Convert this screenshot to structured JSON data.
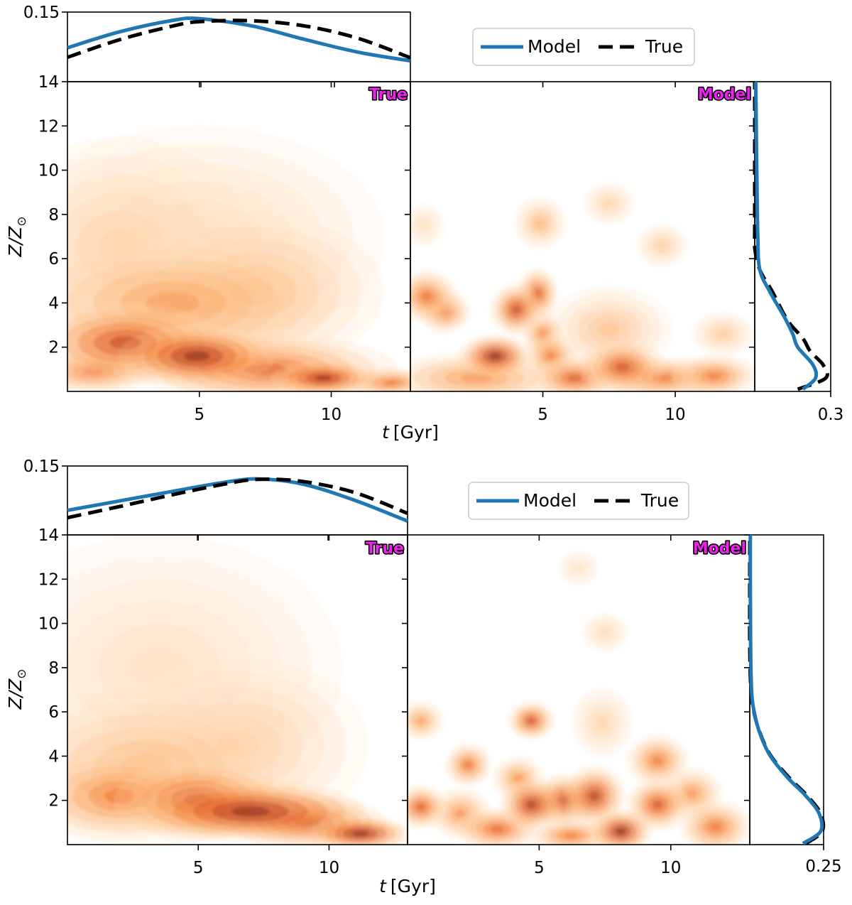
{
  "chart_data": [
    {
      "type": "heatmap",
      "panel": "top",
      "xlabel_t": "t",
      "xlabel_unit": "[Gyr]",
      "ylabel_var": "Z/Z",
      "ylabel_sub": "⊙",
      "xlim": [
        0,
        13
      ],
      "ylim": [
        0,
        14
      ],
      "x_ticks": [
        5,
        10
      ],
      "x_tick_labels": [
        "5",
        "10"
      ],
      "y_ticks": [
        2,
        4,
        6,
        8,
        10,
        12,
        14
      ],
      "y_tick_labels": [
        "2",
        "4",
        "6",
        "8",
        "10",
        "12",
        "14"
      ],
      "top_marginal": {
        "ytick_label": "0.15",
        "series": [
          {
            "name": "Model",
            "x": [
              0,
              2,
              4,
              5,
              7,
              9,
              11,
              13
            ],
            "y": [
              0.078,
              0.115,
              0.141,
              0.145,
              0.128,
              0.097,
              0.068,
              0.048
            ]
          },
          {
            "name": "True",
            "x": [
              0,
              2,
              4,
              5,
              7,
              9,
              11,
              13
            ],
            "y": [
              0.056,
              0.097,
              0.128,
              0.138,
              0.14,
              0.128,
              0.1,
              0.055
            ]
          }
        ]
      },
      "right_marginal": {
        "xtick_label": "0.3",
        "xlim": [
          0,
          0.3
        ],
        "series": [
          {
            "name": "Model",
            "z": [
              0.1,
              0.6,
              1.2,
              2.0,
              2.6,
              3.3,
              4.5,
              5.5,
              7.0,
              10.0,
              13.0,
              14.0
            ],
            "v": [
              0.19,
              0.24,
              0.23,
              0.17,
              0.15,
              0.12,
              0.06,
              0.02,
              0.012,
              0.008,
              0.005,
              0.004
            ]
          },
          {
            "name": "True",
            "z": [
              0.1,
              0.6,
              1.2,
              1.8,
              2.4,
              3.2,
              4.5,
              5.5,
              6.5,
              7.5,
              14.0
            ],
            "v": [
              0.17,
              0.28,
              0.27,
              0.22,
              0.19,
              0.13,
              0.07,
              0.02,
              0.0,
              0.0,
              0.0
            ]
          }
        ]
      },
      "true_blobs": [
        {
          "t": 4.9,
          "z": 1.6,
          "sx": 1.5,
          "sz": 0.7,
          "w": 1.0
        },
        {
          "t": 2.2,
          "z": 2.2,
          "sx": 1.8,
          "sz": 0.9,
          "w": 0.8
        },
        {
          "t": 9.7,
          "z": 0.6,
          "sx": 1.0,
          "sz": 0.4,
          "w": 0.95
        },
        {
          "t": 7.5,
          "z": 1.0,
          "sx": 2.5,
          "sz": 0.8,
          "w": 0.65
        },
        {
          "t": 1.0,
          "z": 0.9,
          "sx": 1.2,
          "sz": 0.5,
          "w": 0.6
        },
        {
          "t": 12.2,
          "z": 0.4,
          "sx": 0.9,
          "sz": 0.35,
          "w": 0.6
        },
        {
          "t": 4.0,
          "z": 4.0,
          "sx": 3.0,
          "sz": 1.5,
          "w": 0.4
        },
        {
          "t": 7.0,
          "z": 4.5,
          "sx": 2.5,
          "sz": 1.8,
          "w": 0.3
        },
        {
          "t": 2.0,
          "z": 6.5,
          "sx": 2.5,
          "sz": 2.5,
          "w": 0.15
        },
        {
          "t": 5.0,
          "z": 7.0,
          "sx": 3.5,
          "sz": 2.5,
          "w": 0.1
        }
      ],
      "model_blobs": [
        {
          "t": 3.2,
          "z": 1.6,
          "sx": 0.7,
          "sz": 0.5,
          "w": 1.0
        },
        {
          "t": 4.0,
          "z": 3.7,
          "sx": 0.5,
          "sz": 0.6,
          "w": 0.8
        },
        {
          "t": 4.8,
          "z": 4.4,
          "sx": 0.4,
          "sz": 0.6,
          "w": 0.7
        },
        {
          "t": 0.6,
          "z": 4.3,
          "sx": 0.6,
          "sz": 0.6,
          "w": 0.6
        },
        {
          "t": 1.3,
          "z": 3.6,
          "sx": 0.5,
          "sz": 0.5,
          "w": 0.55
        },
        {
          "t": 5.0,
          "z": 2.6,
          "sx": 0.4,
          "sz": 0.5,
          "w": 0.5
        },
        {
          "t": 5.3,
          "z": 1.6,
          "sx": 0.5,
          "sz": 0.5,
          "w": 0.55
        },
        {
          "t": 6.2,
          "z": 0.6,
          "sx": 0.8,
          "sz": 0.5,
          "w": 0.7
        },
        {
          "t": 8.0,
          "z": 1.1,
          "sx": 0.8,
          "sz": 0.6,
          "w": 0.75
        },
        {
          "t": 9.5,
          "z": 0.6,
          "sx": 1.2,
          "sz": 0.5,
          "w": 0.55
        },
        {
          "t": 11.5,
          "z": 0.7,
          "sx": 0.8,
          "sz": 0.5,
          "w": 0.55
        },
        {
          "t": 2.5,
          "z": 0.6,
          "sx": 1.8,
          "sz": 0.6,
          "w": 0.45
        },
        {
          "t": 4.9,
          "z": 7.6,
          "sx": 0.5,
          "sz": 0.6,
          "w": 0.3
        },
        {
          "t": 7.5,
          "z": 8.5,
          "sx": 0.5,
          "sz": 0.5,
          "w": 0.15
        },
        {
          "t": 9.5,
          "z": 6.6,
          "sx": 0.5,
          "sz": 0.5,
          "w": 0.18
        },
        {
          "t": 11.8,
          "z": 2.6,
          "sx": 0.6,
          "sz": 0.5,
          "w": 0.2
        },
        {
          "t": 7.5,
          "z": 2.8,
          "sx": 1.2,
          "sz": 1.0,
          "w": 0.25
        },
        {
          "t": 0.5,
          "z": 7.5,
          "sx": 0.4,
          "sz": 0.5,
          "w": 0.08
        }
      ]
    },
    {
      "type": "heatmap",
      "panel": "bottom",
      "xlabel_t": "t",
      "xlabel_unit": "[Gyr]",
      "ylabel_var": "Z/Z",
      "ylabel_sub": "⊙",
      "xlim": [
        0,
        13
      ],
      "ylim": [
        0,
        14
      ],
      "x_ticks": [
        5,
        10
      ],
      "x_tick_labels": [
        "5",
        "10"
      ],
      "y_ticks": [
        2,
        4,
        6,
        8,
        10,
        12,
        14
      ],
      "y_tick_labels": [
        "2",
        "4",
        "6",
        "8",
        "10",
        "12",
        "14"
      ],
      "top_marginal": {
        "ytick_label": "0.15",
        "series": [
          {
            "name": "Model",
            "x": [
              0,
              2,
              4,
              6,
              7.3,
              9,
              11,
              13
            ],
            "y": [
              0.057,
              0.079,
              0.101,
              0.122,
              0.13,
              0.118,
              0.08,
              0.032
            ]
          },
          {
            "name": "True",
            "x": [
              0,
              2,
              4,
              6,
              7.3,
              9,
              11,
              13
            ],
            "y": [
              0.04,
              0.066,
              0.093,
              0.118,
              0.129,
              0.124,
              0.098,
              0.05
            ]
          }
        ]
      },
      "right_marginal": {
        "xtick_label": "0.25",
        "xlim": [
          0,
          0.25
        ],
        "series": [
          {
            "name": "Model",
            "z": [
              0.05,
              0.6,
              1.4,
              2.2,
              3.0,
              4.0,
              5.0,
              6.0,
              7.0,
              9.0,
              12.0,
              14.0
            ],
            "v": [
              0.18,
              0.24,
              0.235,
              0.19,
              0.13,
              0.07,
              0.035,
              0.015,
              0.006,
              0.003,
              0.002,
              0.002
            ]
          },
          {
            "name": "True",
            "z": [
              0.05,
              0.6,
              1.4,
              2.2,
              3.0,
              4.0,
              5.0,
              6.0,
              7.0,
              9.0,
              12.0,
              14.0
            ],
            "v": [
              0.19,
              0.245,
              0.24,
              0.195,
              0.135,
              0.072,
              0.036,
              0.014,
              0.004,
              0.0,
              0.0,
              0.0
            ]
          }
        ]
      },
      "true_blobs": [
        {
          "t": 7.0,
          "z": 1.5,
          "sx": 2.2,
          "sz": 0.7,
          "w": 1.0
        },
        {
          "t": 5.0,
          "z": 2.0,
          "sx": 1.6,
          "sz": 0.9,
          "w": 0.8
        },
        {
          "t": 11.2,
          "z": 0.5,
          "sx": 1.0,
          "sz": 0.4,
          "w": 1.0
        },
        {
          "t": 9.2,
          "z": 1.0,
          "sx": 1.5,
          "sz": 0.6,
          "w": 0.8
        },
        {
          "t": 2.0,
          "z": 2.2,
          "sx": 1.8,
          "sz": 1.0,
          "w": 0.55
        },
        {
          "t": 3.0,
          "z": 3.5,
          "sx": 3.0,
          "sz": 1.8,
          "w": 0.28
        },
        {
          "t": 6.5,
          "z": 4.5,
          "sx": 2.5,
          "sz": 2.0,
          "w": 0.18
        },
        {
          "t": 3.5,
          "z": 8.0,
          "sx": 3.5,
          "sz": 3.0,
          "w": 0.08
        }
      ],
      "model_blobs": [
        {
          "t": 4.7,
          "z": 1.8,
          "sx": 0.6,
          "sz": 0.6,
          "w": 0.9
        },
        {
          "t": 5.9,
          "z": 2.0,
          "sx": 0.6,
          "sz": 0.6,
          "w": 0.8
        },
        {
          "t": 7.1,
          "z": 2.2,
          "sx": 0.6,
          "sz": 0.7,
          "w": 0.85
        },
        {
          "t": 8.1,
          "z": 0.6,
          "sx": 0.6,
          "sz": 0.5,
          "w": 1.0
        },
        {
          "t": 9.5,
          "z": 1.8,
          "sx": 0.6,
          "sz": 0.6,
          "w": 0.75
        },
        {
          "t": 3.4,
          "z": 0.7,
          "sx": 0.8,
          "sz": 0.5,
          "w": 0.65
        },
        {
          "t": 0.5,
          "z": 1.7,
          "sx": 0.5,
          "sz": 0.5,
          "w": 0.7
        },
        {
          "t": 2.0,
          "z": 1.4,
          "sx": 0.6,
          "sz": 0.6,
          "w": 0.45
        },
        {
          "t": 4.7,
          "z": 5.6,
          "sx": 0.45,
          "sz": 0.45,
          "w": 0.75
        },
        {
          "t": 0.5,
          "z": 5.6,
          "sx": 0.45,
          "sz": 0.45,
          "w": 0.4
        },
        {
          "t": 2.3,
          "z": 3.6,
          "sx": 0.45,
          "sz": 0.5,
          "w": 0.6
        },
        {
          "t": 4.2,
          "z": 3.0,
          "sx": 0.5,
          "sz": 0.5,
          "w": 0.45
        },
        {
          "t": 9.5,
          "z": 3.8,
          "sx": 0.6,
          "sz": 0.6,
          "w": 0.55
        },
        {
          "t": 10.8,
          "z": 2.3,
          "sx": 0.6,
          "sz": 0.6,
          "w": 0.45
        },
        {
          "t": 11.7,
          "z": 0.8,
          "sx": 0.7,
          "sz": 0.6,
          "w": 0.6
        },
        {
          "t": 6.2,
          "z": 0.4,
          "sx": 0.8,
          "sz": 0.4,
          "w": 0.55
        },
        {
          "t": 7.5,
          "z": 9.6,
          "sx": 0.45,
          "sz": 0.45,
          "w": 0.12
        },
        {
          "t": 6.5,
          "z": 12.5,
          "sx": 0.4,
          "sz": 0.4,
          "w": 0.05
        },
        {
          "t": 7.4,
          "z": 5.5,
          "sx": 0.6,
          "sz": 0.8,
          "w": 0.15
        }
      ]
    }
  ],
  "labels": {
    "true_tag": "True",
    "model_tag": "Model",
    "legend_model": "Model",
    "legend_true": "True"
  },
  "colors": {
    "model_line": "#1f77b4",
    "true_line": "#000000",
    "tag_fill": "#ee22ee"
  }
}
